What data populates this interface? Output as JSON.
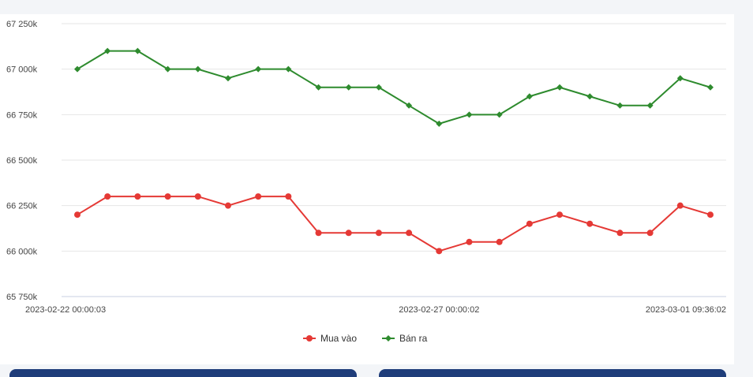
{
  "chart_data": {
    "type": "line",
    "title": "",
    "xlabel": "",
    "ylabel": "",
    "ylim": [
      65750,
      67250
    ],
    "y_ticks": [
      65750,
      66000,
      66250,
      66500,
      66750,
      67000,
      67250
    ],
    "y_tick_labels": [
      "65 750k",
      "66 000k",
      "66 250k",
      "66 500k",
      "66 750k",
      "67 000k",
      "67 250k"
    ],
    "x_tick_labels": [
      "2023-02-22 00:00:03",
      "2023-02-27 00:00:02",
      "2023-03-01 09:36:02"
    ],
    "x_tick_indices": [
      0,
      12,
      22
    ],
    "n_points": 22,
    "grid": true,
    "legend_position": "bottom-center",
    "series": [
      {
        "name": "Mua vào",
        "color": "#e53935",
        "marker": "circle",
        "values": [
          66200,
          66300,
          66300,
          66300,
          66300,
          66250,
          66300,
          66300,
          66100,
          66100,
          66100,
          66100,
          66000,
          66050,
          66050,
          66150,
          66200,
          66150,
          66100,
          66100,
          66250,
          66200
        ]
      },
      {
        "name": "Bán ra",
        "color": "#2e8b2e",
        "marker": "diamond",
        "values": [
          67000,
          67100,
          67100,
          67000,
          67000,
          66950,
          67000,
          67000,
          66900,
          66900,
          66900,
          66800,
          66700,
          66750,
          66750,
          66850,
          66900,
          66850,
          66800,
          66800,
          66950,
          66900
        ]
      }
    ]
  }
}
